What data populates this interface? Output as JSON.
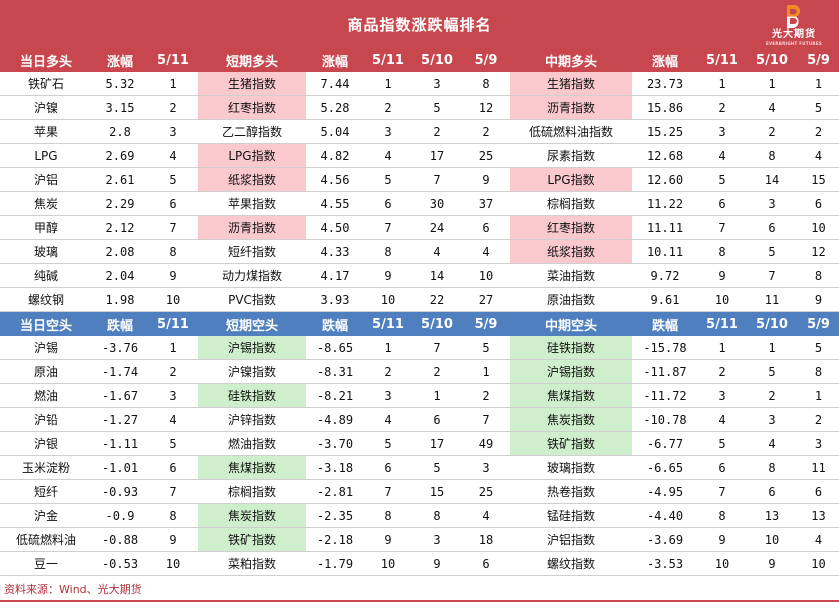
{
  "title": "商品指数涨跌幅排名",
  "logo": {
    "text": "光大期货",
    "subtext": "EVERBRIGHT FUTURES"
  },
  "source": "资料来源：Wind、光大期货",
  "long_section": {
    "headers": [
      "当日多头",
      "涨幅",
      "5/11",
      "短期多头",
      "涨幅",
      "5/11",
      "5/10",
      "5/9",
      "中期多头",
      "涨幅",
      "5/11",
      "5/10",
      "5/9"
    ],
    "rows": [
      [
        "铁矿石",
        "5.32",
        "1",
        "生猪指数",
        "7.44",
        "1",
        "3",
        "8",
        "生猪指数",
        "23.73",
        "1",
        "1",
        "1"
      ],
      [
        "沪镍",
        "3.15",
        "2",
        "红枣指数",
        "5.28",
        "2",
        "5",
        "12",
        "沥青指数",
        "15.86",
        "2",
        "4",
        "5"
      ],
      [
        "苹果",
        "2.8",
        "3",
        "乙二醇指数",
        "5.04",
        "3",
        "2",
        "2",
        "低硫燃料油指数",
        "15.25",
        "3",
        "2",
        "2"
      ],
      [
        "LPG",
        "2.69",
        "4",
        "LPG指数",
        "4.82",
        "4",
        "17",
        "25",
        "尿素指数",
        "12.68",
        "4",
        "8",
        "4"
      ],
      [
        "沪铝",
        "2.61",
        "5",
        "纸浆指数",
        "4.56",
        "5",
        "7",
        "9",
        "LPG指数",
        "12.60",
        "5",
        "14",
        "15"
      ],
      [
        "焦炭",
        "2.29",
        "6",
        "苹果指数",
        "4.55",
        "6",
        "30",
        "37",
        "棕榈指数",
        "11.22",
        "6",
        "3",
        "6"
      ],
      [
        "甲醇",
        "2.12",
        "7",
        "沥青指数",
        "4.50",
        "7",
        "24",
        "6",
        "红枣指数",
        "11.11",
        "7",
        "6",
        "10"
      ],
      [
        "玻璃",
        "2.08",
        "8",
        "短纤指数",
        "4.33",
        "8",
        "4",
        "4",
        "纸浆指数",
        "10.11",
        "8",
        "5",
        "12"
      ],
      [
        "纯碱",
        "2.04",
        "9",
        "动力煤指数",
        "4.17",
        "9",
        "14",
        "10",
        "菜油指数",
        "9.72",
        "9",
        "7",
        "8"
      ],
      [
        "螺纹钢",
        "1.98",
        "10",
        "PVC指数",
        "3.93",
        "10",
        "22",
        "27",
        "原油指数",
        "9.61",
        "10",
        "11",
        "9"
      ]
    ],
    "highlight_short": [
      true,
      true,
      false,
      true,
      true,
      false,
      true,
      false,
      false,
      false
    ],
    "highlight_mid": [
      true,
      true,
      false,
      false,
      true,
      false,
      true,
      true,
      false,
      false
    ]
  },
  "short_section": {
    "headers": [
      "当日空头",
      "跌幅",
      "5/11",
      "短期空头",
      "跌幅",
      "5/11",
      "5/10",
      "5/9",
      "中期空头",
      "跌幅",
      "5/11",
      "5/10",
      "5/9"
    ],
    "rows": [
      [
        "沪锡",
        "-3.76",
        "1",
        "沪锡指数",
        "-8.65",
        "1",
        "7",
        "5",
        "硅铁指数",
        "-15.78",
        "1",
        "1",
        "5"
      ],
      [
        "原油",
        "-1.74",
        "2",
        "沪镍指数",
        "-8.31",
        "2",
        "2",
        "1",
        "沪锡指数",
        "-11.87",
        "2",
        "5",
        "8"
      ],
      [
        "燃油",
        "-1.67",
        "3",
        "硅铁指数",
        "-8.21",
        "3",
        "1",
        "2",
        "焦煤指数",
        "-11.72",
        "3",
        "2",
        "1"
      ],
      [
        "沪铅",
        "-1.27",
        "4",
        "沪锌指数",
        "-4.89",
        "4",
        "6",
        "7",
        "焦炭指数",
        "-10.78",
        "4",
        "3",
        "2"
      ],
      [
        "沪银",
        "-1.11",
        "5",
        "燃油指数",
        "-3.70",
        "5",
        "17",
        "49",
        "铁矿指数",
        "-6.77",
        "5",
        "4",
        "3"
      ],
      [
        "玉米淀粉",
        "-1.01",
        "6",
        "焦煤指数",
        "-3.18",
        "6",
        "5",
        "3",
        "玻璃指数",
        "-6.65",
        "6",
        "8",
        "11"
      ],
      [
        "短纤",
        "-0.93",
        "7",
        "棕榈指数",
        "-2.81",
        "7",
        "15",
        "25",
        "热卷指数",
        "-4.95",
        "7",
        "6",
        "6"
      ],
      [
        "沪金",
        "-0.9",
        "8",
        "焦炭指数",
        "-2.35",
        "8",
        "8",
        "4",
        "锰硅指数",
        "-4.40",
        "8",
        "13",
        "13"
      ],
      [
        "低硫燃料油",
        "-0.88",
        "9",
        "铁矿指数",
        "-2.18",
        "9",
        "3",
        "18",
        "沪铝指数",
        "-3.69",
        "9",
        "10",
        "4"
      ],
      [
        "豆一",
        "-0.53",
        "10",
        "菜粕指数",
        "-1.79",
        "10",
        "9",
        "6",
        "螺纹指数",
        "-3.53",
        "10",
        "9",
        "10"
      ]
    ],
    "highlight_short": [
      true,
      false,
      true,
      false,
      false,
      true,
      false,
      true,
      true,
      false
    ],
    "highlight_mid": [
      true,
      true,
      true,
      true,
      true,
      false,
      false,
      false,
      false,
      false
    ]
  },
  "colors": {
    "title_bg": "#c8474f",
    "long_header_bg": "#c8474f",
    "short_header_bg": "#4f7fbf",
    "highlight_red": "#f9c9ce",
    "highlight_green": "#cfeecc"
  }
}
